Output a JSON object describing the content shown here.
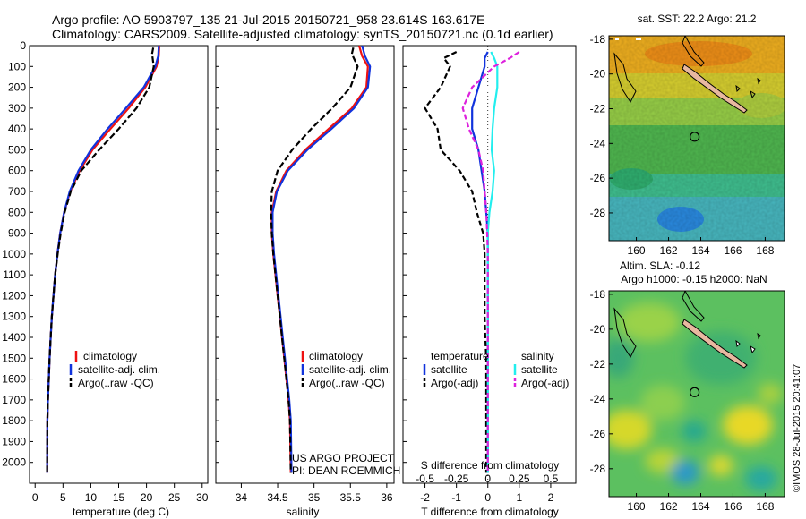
{
  "header": {
    "line1": "Argo profile: AO 5903797_135 21-Jul-2015 20150721_958 23.614S 163.617E",
    "line2": "Climatology: CARS2009. Satellite-adjusted climatology: synTS_20150721.nc (0.1d earlier)"
  },
  "colors": {
    "climatology": "#ee1111",
    "satellite": "#1133dd",
    "argo": "#000000",
    "sal_satellite": "#22eeee",
    "sal_argo": "#dd22dd"
  },
  "chart_data": [
    {
      "type": "line",
      "title": "",
      "xlabel": "temperature (deg C)",
      "ylabel": "",
      "xlim": [
        -1,
        31
      ],
      "ylim": [
        2100,
        0
      ],
      "xticks": [
        0,
        5,
        10,
        15,
        20,
        25,
        30
      ],
      "yticks": [
        0,
        100,
        200,
        300,
        400,
        500,
        600,
        700,
        800,
        900,
        1000,
        1100,
        1200,
        1300,
        1400,
        1500,
        1600,
        1700,
        1800,
        1900,
        2000
      ],
      "series": [
        {
          "name": "climatology",
          "color": "#ee1111",
          "dash": "",
          "x": [
            22.3,
            22.2,
            21.8,
            19.8,
            16.8,
            13.5,
            10.3,
            8.0,
            6.3,
            5.2,
            4.5,
            4.0,
            3.6,
            3.3,
            3.0,
            2.8,
            2.6,
            2.45,
            2.3,
            2.2,
            2.15
          ],
          "y": [
            0,
            50,
            100,
            200,
            300,
            400,
            500,
            600,
            700,
            800,
            900,
            1000,
            1100,
            1200,
            1300,
            1400,
            1500,
            1600,
            1700,
            1800,
            2050
          ]
        },
        {
          "name": "satellite-adj. clim.",
          "color": "#1133dd",
          "dash": "",
          "x": [
            22.2,
            22.1,
            21.6,
            19.5,
            16.3,
            13.0,
            10.0,
            7.8,
            6.2,
            5.2,
            4.5,
            4.0,
            3.6,
            3.3,
            3.0,
            2.8,
            2.6,
            2.45,
            2.3,
            2.2,
            2.15
          ],
          "y": [
            0,
            50,
            100,
            200,
            300,
            400,
            500,
            600,
            700,
            800,
            900,
            1000,
            1100,
            1200,
            1300,
            1400,
            1500,
            1600,
            1700,
            1800,
            2050
          ]
        },
        {
          "name": "Argo(..raw -QC)",
          "color": "#000000",
          "dash": "7,3",
          "x": [
            21.2,
            21.0,
            21.3,
            20.5,
            18.2,
            15.0,
            11.5,
            8.3,
            6.4,
            5.3,
            4.6,
            4.05,
            3.6,
            3.3,
            3.0,
            2.8,
            2.6,
            2.45,
            2.3,
            2.2,
            2.15
          ],
          "y": [
            10,
            40,
            100,
            200,
            300,
            400,
            500,
            600,
            700,
            800,
            900,
            1000,
            1100,
            1200,
            1300,
            1400,
            1500,
            1600,
            1700,
            1800,
            2050
          ]
        }
      ],
      "legend": [
        "climatology",
        "satellite-adj. clim.",
        "Argo(..raw -QC)"
      ]
    },
    {
      "type": "line",
      "title": "",
      "xlabel": "salinity",
      "ylabel": "",
      "xlim": [
        33.65,
        36.1
      ],
      "ylim": [
        2100,
        0
      ],
      "xticks": [
        34,
        34.5,
        35,
        35.5,
        36
      ],
      "series": [
        {
          "name": "climatology",
          "color": "#ee1111",
          "dash": "",
          "x": [
            35.62,
            35.66,
            35.74,
            35.72,
            35.52,
            35.2,
            34.88,
            34.62,
            34.48,
            34.42,
            34.42,
            34.44,
            34.47,
            34.5,
            34.53,
            34.56,
            34.59,
            34.62,
            34.65,
            34.67,
            34.68
          ],
          "y": [
            0,
            50,
            100,
            200,
            300,
            400,
            500,
            600,
            700,
            800,
            900,
            1000,
            1100,
            1200,
            1300,
            1400,
            1500,
            1600,
            1700,
            1800,
            2050
          ]
        },
        {
          "name": "satellite-adj. clim.",
          "color": "#1133dd",
          "dash": "",
          "x": [
            35.66,
            35.7,
            35.77,
            35.74,
            35.55,
            35.24,
            34.91,
            34.64,
            34.49,
            34.43,
            34.43,
            34.45,
            34.48,
            34.51,
            34.54,
            34.57,
            34.6,
            34.63,
            34.66,
            34.68,
            34.69
          ],
          "y": [
            0,
            50,
            100,
            200,
            300,
            400,
            500,
            600,
            700,
            800,
            900,
            1000,
            1100,
            1200,
            1300,
            1400,
            1500,
            1600,
            1700,
            1800,
            2050
          ]
        },
        {
          "name": "Argo(..raw -QC)",
          "color": "#000000",
          "dash": "7,3",
          "x": [
            35.54,
            35.52,
            35.6,
            35.5,
            35.25,
            34.96,
            34.7,
            34.5,
            34.42,
            34.41,
            34.42,
            34.44,
            34.47,
            34.5,
            34.53,
            34.56,
            34.59,
            34.62,
            34.65,
            34.67,
            34.68
          ],
          "y": [
            10,
            40,
            100,
            200,
            300,
            400,
            500,
            600,
            700,
            800,
            900,
            1000,
            1100,
            1200,
            1300,
            1400,
            1500,
            1600,
            1700,
            1800,
            2050
          ]
        }
      ],
      "legend": [
        "climatology",
        "satellite-adj. clim.",
        "Argo(..raw -QC)"
      ],
      "annotations": [
        "US ARGO PROJECT",
        "PI: DEAN ROEMMICH"
      ]
    },
    {
      "type": "line",
      "title": "",
      "xlabel": "T difference from climatology",
      "xlabel_top": "S difference from climatology",
      "ylabel": "",
      "xlim": [
        -2.7,
        2.8
      ],
      "ylim": [
        2100,
        0
      ],
      "xticks": [
        -2,
        -1,
        0,
        1,
        2
      ],
      "xticks_s": [
        "-0.5",
        "-0.25",
        "0",
        "0.25",
        "0.5"
      ],
      "series": [
        {
          "name": "temperature satellite",
          "color": "#1133dd",
          "dash": "",
          "x": [
            0.0,
            -0.1,
            -0.1,
            -0.3,
            -0.5,
            -0.5,
            -0.3,
            -0.2,
            -0.1,
            -0.05,
            0.0,
            0.0,
            0.0,
            0.0,
            0.0,
            0.0,
            0.0,
            0.0,
            0.0,
            0.0
          ],
          "y": [
            30,
            60,
            100,
            200,
            300,
            400,
            500,
            600,
            700,
            800,
            900,
            1000,
            1100,
            1200,
            1300,
            1400,
            1500,
            1600,
            1800,
            2050
          ]
        },
        {
          "name": "temperature Argo(-adj)",
          "color": "#000000",
          "dash": "6,3",
          "x": [
            -1.0,
            -1.4,
            -1.2,
            -1.5,
            -2.0,
            -1.6,
            -1.5,
            -0.9,
            -0.5,
            -0.35,
            -0.15,
            -0.1,
            -0.1,
            -0.1,
            -0.1,
            -0.08,
            -0.05,
            -0.05,
            -0.05,
            -0.05
          ],
          "y": [
            30,
            60,
            100,
            200,
            300,
            400,
            500,
            600,
            700,
            800,
            900,
            1000,
            1100,
            1200,
            1300,
            1400,
            1500,
            1600,
            1800,
            2050
          ]
        },
        {
          "name": "salinity satellite",
          "color": "#22eeee",
          "dash": "",
          "x": [
            0.1,
            0.2,
            0.3,
            0.3,
            0.2,
            0.15,
            0.12,
            0.2,
            0.15,
            0.05,
            0.0,
            0.0,
            0.0,
            0.0,
            0.0,
            0.0,
            0.0,
            0.0,
            0.0,
            0.0
          ],
          "y": [
            30,
            60,
            100,
            200,
            300,
            400,
            500,
            600,
            700,
            800,
            900,
            1000,
            1100,
            1200,
            1300,
            1400,
            1500,
            1600,
            1800,
            2050
          ]
        },
        {
          "name": "salinity Argo(-adj)",
          "color": "#dd22dd",
          "dash": "6,3",
          "x": [
            1.0,
            0.7,
            0.2,
            -0.5,
            -0.8,
            -0.6,
            -0.3,
            -0.15,
            -0.1,
            -0.05,
            -0.02,
            0.0,
            0.0,
            0.0,
            0.0,
            0.0,
            0.0,
            0.0,
            0.0,
            0.0
          ],
          "y": [
            30,
            60,
            100,
            200,
            300,
            400,
            500,
            600,
            700,
            800,
            900,
            1000,
            1100,
            1200,
            1300,
            1400,
            1500,
            1600,
            1800,
            2050
          ]
        }
      ],
      "legend": {
        "temperature_title": "temperature",
        "salinity_title": "salinity",
        "satellite": "satellite",
        "argo": "Argo(-adj)"
      }
    },
    {
      "type": "heatmap",
      "title": "sat. SST: 22.2  Argo: 21.2",
      "xlabel": "",
      "ylabel": "",
      "xlim": [
        158.3,
        169.2
      ],
      "ylim": [
        -29.6,
        -17.8
      ],
      "xticks": [
        160,
        162,
        164,
        166,
        168
      ],
      "yticks": [
        -18,
        -20,
        -22,
        -24,
        -26,
        -28
      ],
      "marker": {
        "lon": 163.617,
        "lat": -23.614
      }
    },
    {
      "type": "heatmap",
      "title": "Altim. SLA: -0.12",
      "subtitle": "Argo h1000: -0.15 h2000: NaN",
      "xlabel": "",
      "ylabel": "",
      "xlim": [
        158.3,
        169.2
      ],
      "ylim": [
        -29.6,
        -17.8
      ],
      "xticks": [
        160,
        162,
        164,
        166,
        168
      ],
      "yticks": [
        -18,
        -20,
        -22,
        -24,
        -26,
        -28
      ],
      "marker": {
        "lon": 163.617,
        "lat": -23.614
      }
    }
  ],
  "credit": "©IMOS 28-Jul-2015 20:41:07"
}
